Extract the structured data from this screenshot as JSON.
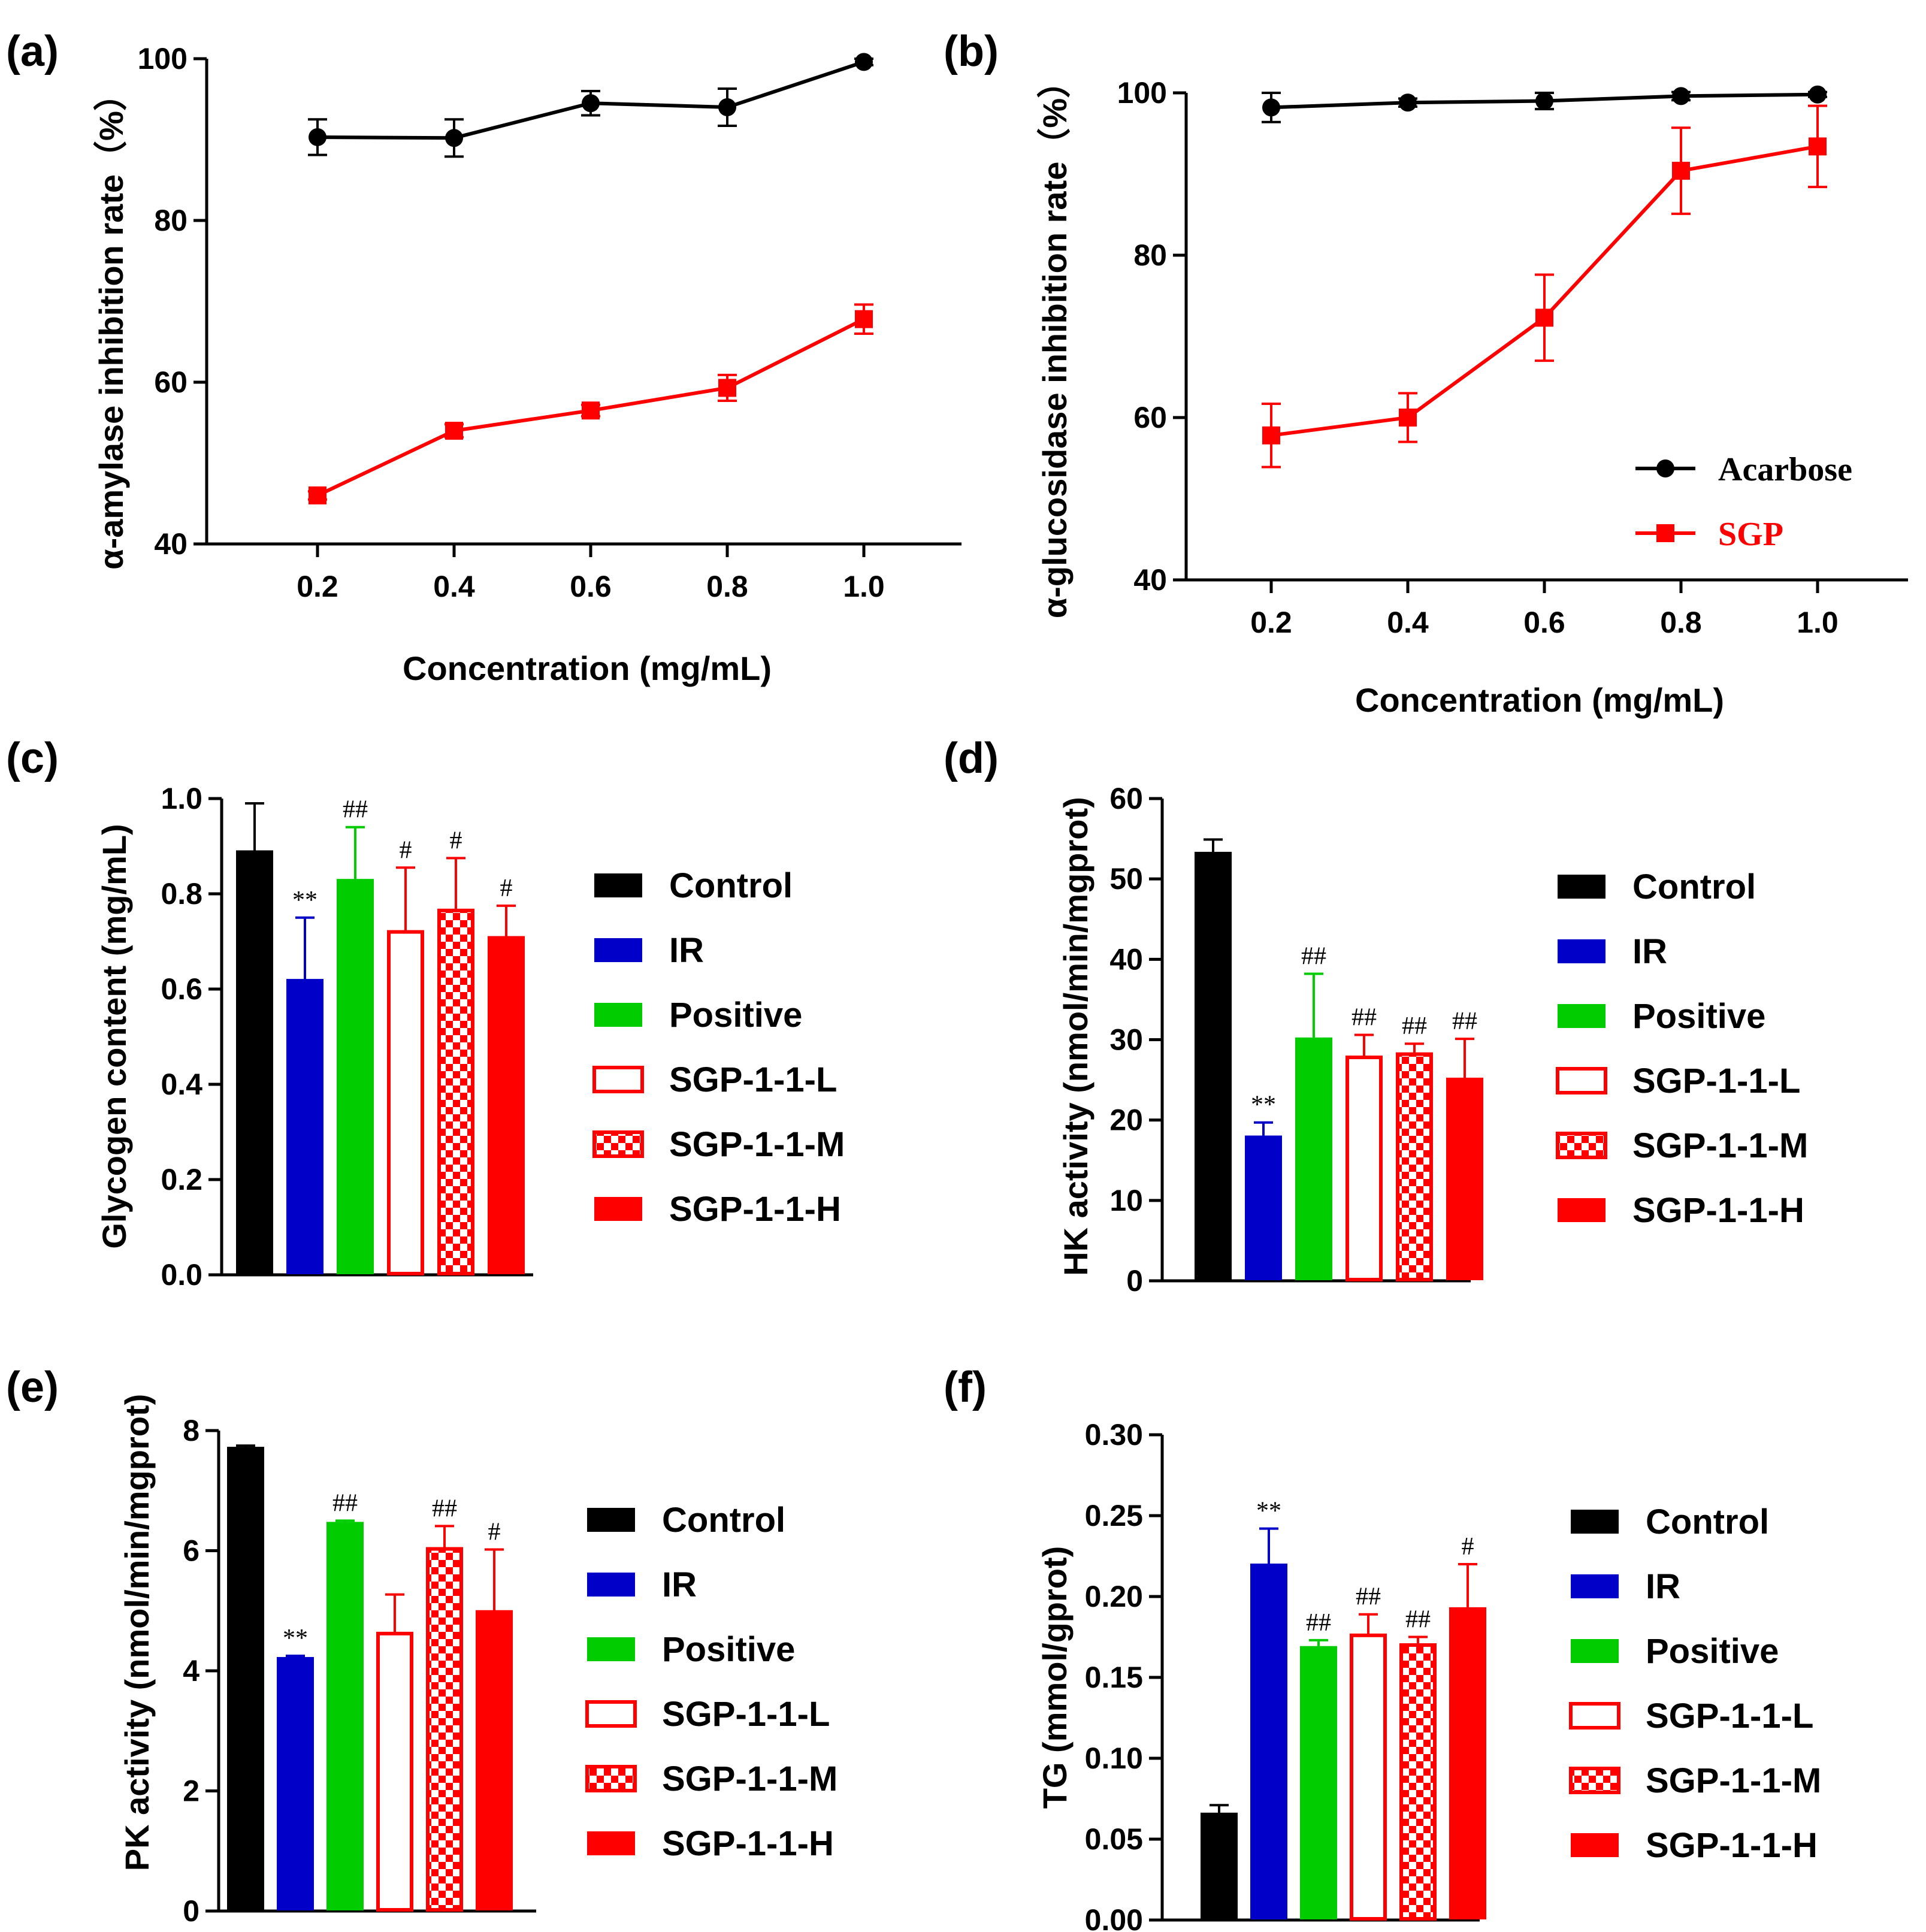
{
  "colors": {
    "black": "#000000",
    "red": "#ff0000",
    "blue": "#0000c8",
    "green": "#00cc00",
    "white": "#ffffff"
  },
  "chart_data": [
    {
      "id": "a",
      "panel_label": "(a)",
      "type": "line",
      "ylabel": "α-amylase inhibition rate（%）",
      "xlabel": "Concentration (mg/mL)",
      "x": [
        0.2,
        0.4,
        0.6,
        0.8,
        1.0
      ],
      "x_tick_labels": [
        "0.2",
        "0.4",
        "0.6",
        "0.8",
        "1.0"
      ],
      "ylim": [
        40,
        100
      ],
      "y_ticks": [
        40,
        60,
        80,
        100
      ],
      "y_tick_labels": [
        "40",
        "60",
        "80",
        "100"
      ],
      "series": [
        {
          "name": "Acarbose",
          "marker": "circle",
          "color": "#000000",
          "values": [
            90.3,
            90.2,
            94.5,
            94.0,
            99.6
          ],
          "errors": [
            2.2,
            2.3,
            1.5,
            2.3,
            0.4
          ]
        },
        {
          "name": "SGP",
          "marker": "square",
          "color": "#ff0000",
          "values": [
            46.0,
            54.0,
            56.5,
            59.3,
            67.8
          ],
          "errors": [
            0.5,
            0.8,
            0.7,
            1.6,
            1.8
          ]
        }
      ]
    },
    {
      "id": "b",
      "panel_label": "(b)",
      "type": "line",
      "ylabel": "α-glucosidase inhibition rate（%）",
      "xlabel": "Concentration (mg/mL)",
      "x": [
        0.2,
        0.4,
        0.6,
        0.8,
        1.0
      ],
      "x_tick_labels": [
        "0.2",
        "0.4",
        "0.6",
        "0.8",
        "1.0"
      ],
      "ylim": [
        40,
        100
      ],
      "y_ticks": [
        40,
        60,
        80,
        100
      ],
      "y_tick_labels": [
        "40",
        "60",
        "80",
        "100"
      ],
      "legend": {
        "position": "bottom-right",
        "entries": [
          "Acarbose",
          "SGP"
        ]
      },
      "series": [
        {
          "name": "Acarbose",
          "marker": "circle",
          "color": "#000000",
          "values": [
            98.2,
            98.8,
            99.0,
            99.6,
            99.8
          ],
          "errors": [
            1.8,
            0.5,
            1.0,
            0.5,
            0.3
          ]
        },
        {
          "name": "SGP",
          "marker": "square",
          "color": "#ff0000",
          "values": [
            57.8,
            60.0,
            72.3,
            90.4,
            93.4
          ],
          "errors": [
            3.9,
            3.0,
            5.3,
            5.3,
            5.0
          ]
        }
      ]
    },
    {
      "id": "c",
      "panel_label": "(c)",
      "type": "bar",
      "ylabel": "Glycogen content (mg/mL)",
      "categories": [
        "Control",
        "IR",
        "Positive",
        "SGP-1-1-L",
        "SGP-1-1-M",
        "SGP-1-1-H"
      ],
      "values": [
        0.89,
        0.62,
        0.83,
        0.72,
        0.765,
        0.71
      ],
      "errors": [
        0.1,
        0.13,
        0.11,
        0.135,
        0.11,
        0.065
      ],
      "significance": [
        "",
        "**",
        "##",
        "#",
        "#",
        "#"
      ],
      "ylim": [
        0.0,
        1.0
      ],
      "y_ticks": [
        0.0,
        0.2,
        0.4,
        0.6,
        0.8,
        1.0
      ],
      "y_tick_labels": [
        "0.0",
        "0.2",
        "0.4",
        "0.6",
        "0.8",
        "1.0"
      ],
      "legend_entries": [
        "Control",
        "IR",
        "Positive",
        "SGP-1-1-L",
        "SGP-1-1-M",
        "SGP-1-1-H"
      ]
    },
    {
      "id": "d",
      "panel_label": "(d)",
      "type": "bar",
      "ylabel": "HK activity (nmol/min/mgprot)",
      "categories": [
        "Control",
        "IR",
        "Positive",
        "SGP-1-1-L",
        "SGP-1-1-M",
        "SGP-1-1-H"
      ],
      "values": [
        53.3,
        18.0,
        30.2,
        27.8,
        28.2,
        25.2
      ],
      "errors": [
        1.6,
        1.7,
        8.0,
        2.8,
        1.3,
        4.9
      ],
      "significance": [
        "",
        "**",
        "##",
        "##",
        "##",
        "##"
      ],
      "ylim": [
        0,
        60
      ],
      "y_ticks": [
        0,
        10,
        20,
        30,
        40,
        50,
        60
      ],
      "y_tick_labels": [
        "0",
        "10",
        "20",
        "30",
        "40",
        "50",
        "60"
      ],
      "legend_entries": [
        "Control",
        "IR",
        "Positive",
        "SGP-1-1-L",
        "SGP-1-1-M",
        "SGP-1-1-H"
      ]
    },
    {
      "id": "e",
      "panel_label": "(e)",
      "type": "bar",
      "ylabel": "PK activity (nmol/min/mgprot)",
      "categories": [
        "Control",
        "IR",
        "Positive",
        "SGP-1-1-L",
        "SGP-1-1-M",
        "SGP-1-1-H"
      ],
      "values": [
        7.72,
        4.22,
        6.47,
        4.62,
        6.03,
        5.0
      ],
      "errors": [
        0.03,
        0.03,
        0.03,
        0.65,
        0.38,
        1.02
      ],
      "significance": [
        "",
        "**",
        "##",
        "",
        "##",
        "#"
      ],
      "ylim": [
        0,
        8
      ],
      "y_ticks": [
        0,
        2,
        4,
        6,
        8
      ],
      "y_tick_labels": [
        "0",
        "2",
        "4",
        "6",
        "8"
      ],
      "legend_entries": [
        "Control",
        "IR",
        "Positive",
        "SGP-1-1-L",
        "SGP-1-1-M",
        "SGP-1-1-H"
      ]
    },
    {
      "id": "f",
      "panel_label": "(f)",
      "type": "bar",
      "ylabel": "TG (mmol/gprot)",
      "categories": [
        "Control",
        "IR",
        "Positive",
        "SGP-1-1-L",
        "SGP-1-1-M",
        "SGP-1-1-H"
      ],
      "values": [
        0.066,
        0.22,
        0.169,
        0.176,
        0.17,
        0.193
      ],
      "errors": [
        0.005,
        0.022,
        0.004,
        0.013,
        0.005,
        0.027
      ],
      "significance": [
        "",
        "**",
        "##",
        "##",
        "##",
        "#"
      ],
      "ylim": [
        0.0,
        0.3
      ],
      "y_ticks": [
        0.0,
        0.05,
        0.1,
        0.15,
        0.2,
        0.25,
        0.3
      ],
      "y_tick_labels": [
        "0.00",
        "0.05",
        "0.10",
        "0.15",
        "0.20",
        "0.25",
        "0.30"
      ],
      "legend_entries": [
        "Control",
        "IR",
        "Positive",
        "SGP-1-1-L",
        "SGP-1-1-M",
        "SGP-1-1-H"
      ]
    }
  ]
}
